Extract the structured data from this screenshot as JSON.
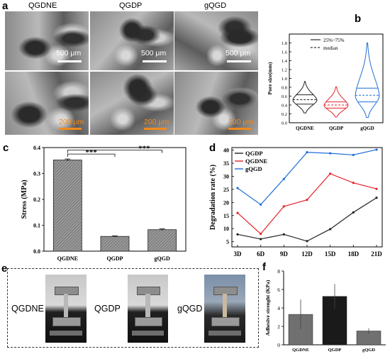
{
  "panels": {
    "a": "a",
    "b": "b",
    "c": "c",
    "d": "d",
    "e": "e",
    "f": "f"
  },
  "sem": {
    "titles": [
      "QGDNE",
      "QGDP",
      "gQGD"
    ],
    "top_scales": [
      "500 μm",
      "500 μm",
      "500 μm"
    ],
    "bottom_scales": [
      "200 μm",
      "200 μm",
      "200 μm"
    ]
  },
  "photos": {
    "labels": [
      "QGDNE",
      "QGDP",
      "gQGD"
    ]
  },
  "colors": {
    "black": "#222222",
    "red": "#e3242b",
    "blue": "#1f6fd6",
    "orange": "#f28a1c"
  },
  "chart_data": [
    {
      "id": "b",
      "type": "violin",
      "categories": [
        "QGDNE",
        "QGDP",
        "gQGD"
      ],
      "ylabel": "Pore size(mm)",
      "ylim": [
        0,
        2.0
      ],
      "yticks": [
        "0.0",
        "0.2",
        "0.4",
        "0.6",
        "0.8",
        "1.0",
        "1.2",
        "1.4",
        "1.6",
        "1.8"
      ],
      "legend": [
        "25%~75%",
        "median"
      ],
      "legend_position": "top-right",
      "series": [
        {
          "color": "black",
          "min": 0.22,
          "max": 0.93,
          "q1": 0.42,
          "median": 0.52,
          "q3": 0.63
        },
        {
          "color": "red",
          "min": 0.13,
          "max": 0.81,
          "q1": 0.33,
          "median": 0.4,
          "q3": 0.47
        },
        {
          "color": "blue",
          "min": 0.12,
          "max": 1.8,
          "q1": 0.47,
          "median": 0.62,
          "q3": 0.78
        }
      ]
    },
    {
      "id": "c",
      "type": "bar",
      "categories": [
        "QGDNE",
        "QGDP",
        "gQGD"
      ],
      "values": [
        0.352,
        0.057,
        0.083
      ],
      "errors": [
        0.004,
        0.002,
        0.003
      ],
      "ylabel": "Stress (MPa)",
      "ylim": [
        0.0,
        0.4
      ],
      "yticks": [
        "0.0",
        "0.1",
        "0.2",
        "0.3",
        "0.4"
      ],
      "annotations": [
        "***",
        "***"
      ]
    },
    {
      "id": "d",
      "type": "line",
      "x": [
        "3D",
        "6D",
        "9D",
        "12D",
        "15D",
        "18D",
        "21D"
      ],
      "ylabel": "Degradation rate (%)",
      "ylim": [
        3,
        41
      ],
      "yticks": [
        "5",
        "10",
        "15",
        "20",
        "25",
        "30",
        "35",
        "40"
      ],
      "legend_position": "top-left",
      "series": [
        {
          "name": "QGDP",
          "color": "black",
          "values": [
            7.8,
            6.0,
            7.8,
            5.2,
            9.8,
            16.2,
            21.8
          ]
        },
        {
          "name": "QGDNE",
          "color": "red",
          "values": [
            16.0,
            8.0,
            18.5,
            21.0,
            31.0,
            27.5,
            25.2
          ]
        },
        {
          "name": "gQGD",
          "color": "blue",
          "values": [
            25.5,
            19.2,
            29.0,
            39.2,
            38.8,
            38.2,
            40.2
          ]
        }
      ]
    },
    {
      "id": "f",
      "type": "bar",
      "categories": [
        "QGDNE",
        "QGDP",
        "gQGD"
      ],
      "values": [
        3.3,
        5.25,
        1.5
      ],
      "errors": [
        1.6,
        1.35,
        0.3
      ],
      "bar_colors": [
        "#707070",
        "#1a1a1a",
        "#707070"
      ],
      "ylabel": "Adhesive strenght (KPa)",
      "ylim": [
        0,
        8
      ],
      "yticks": [
        "0",
        "2",
        "4",
        "6",
        "8"
      ]
    }
  ]
}
